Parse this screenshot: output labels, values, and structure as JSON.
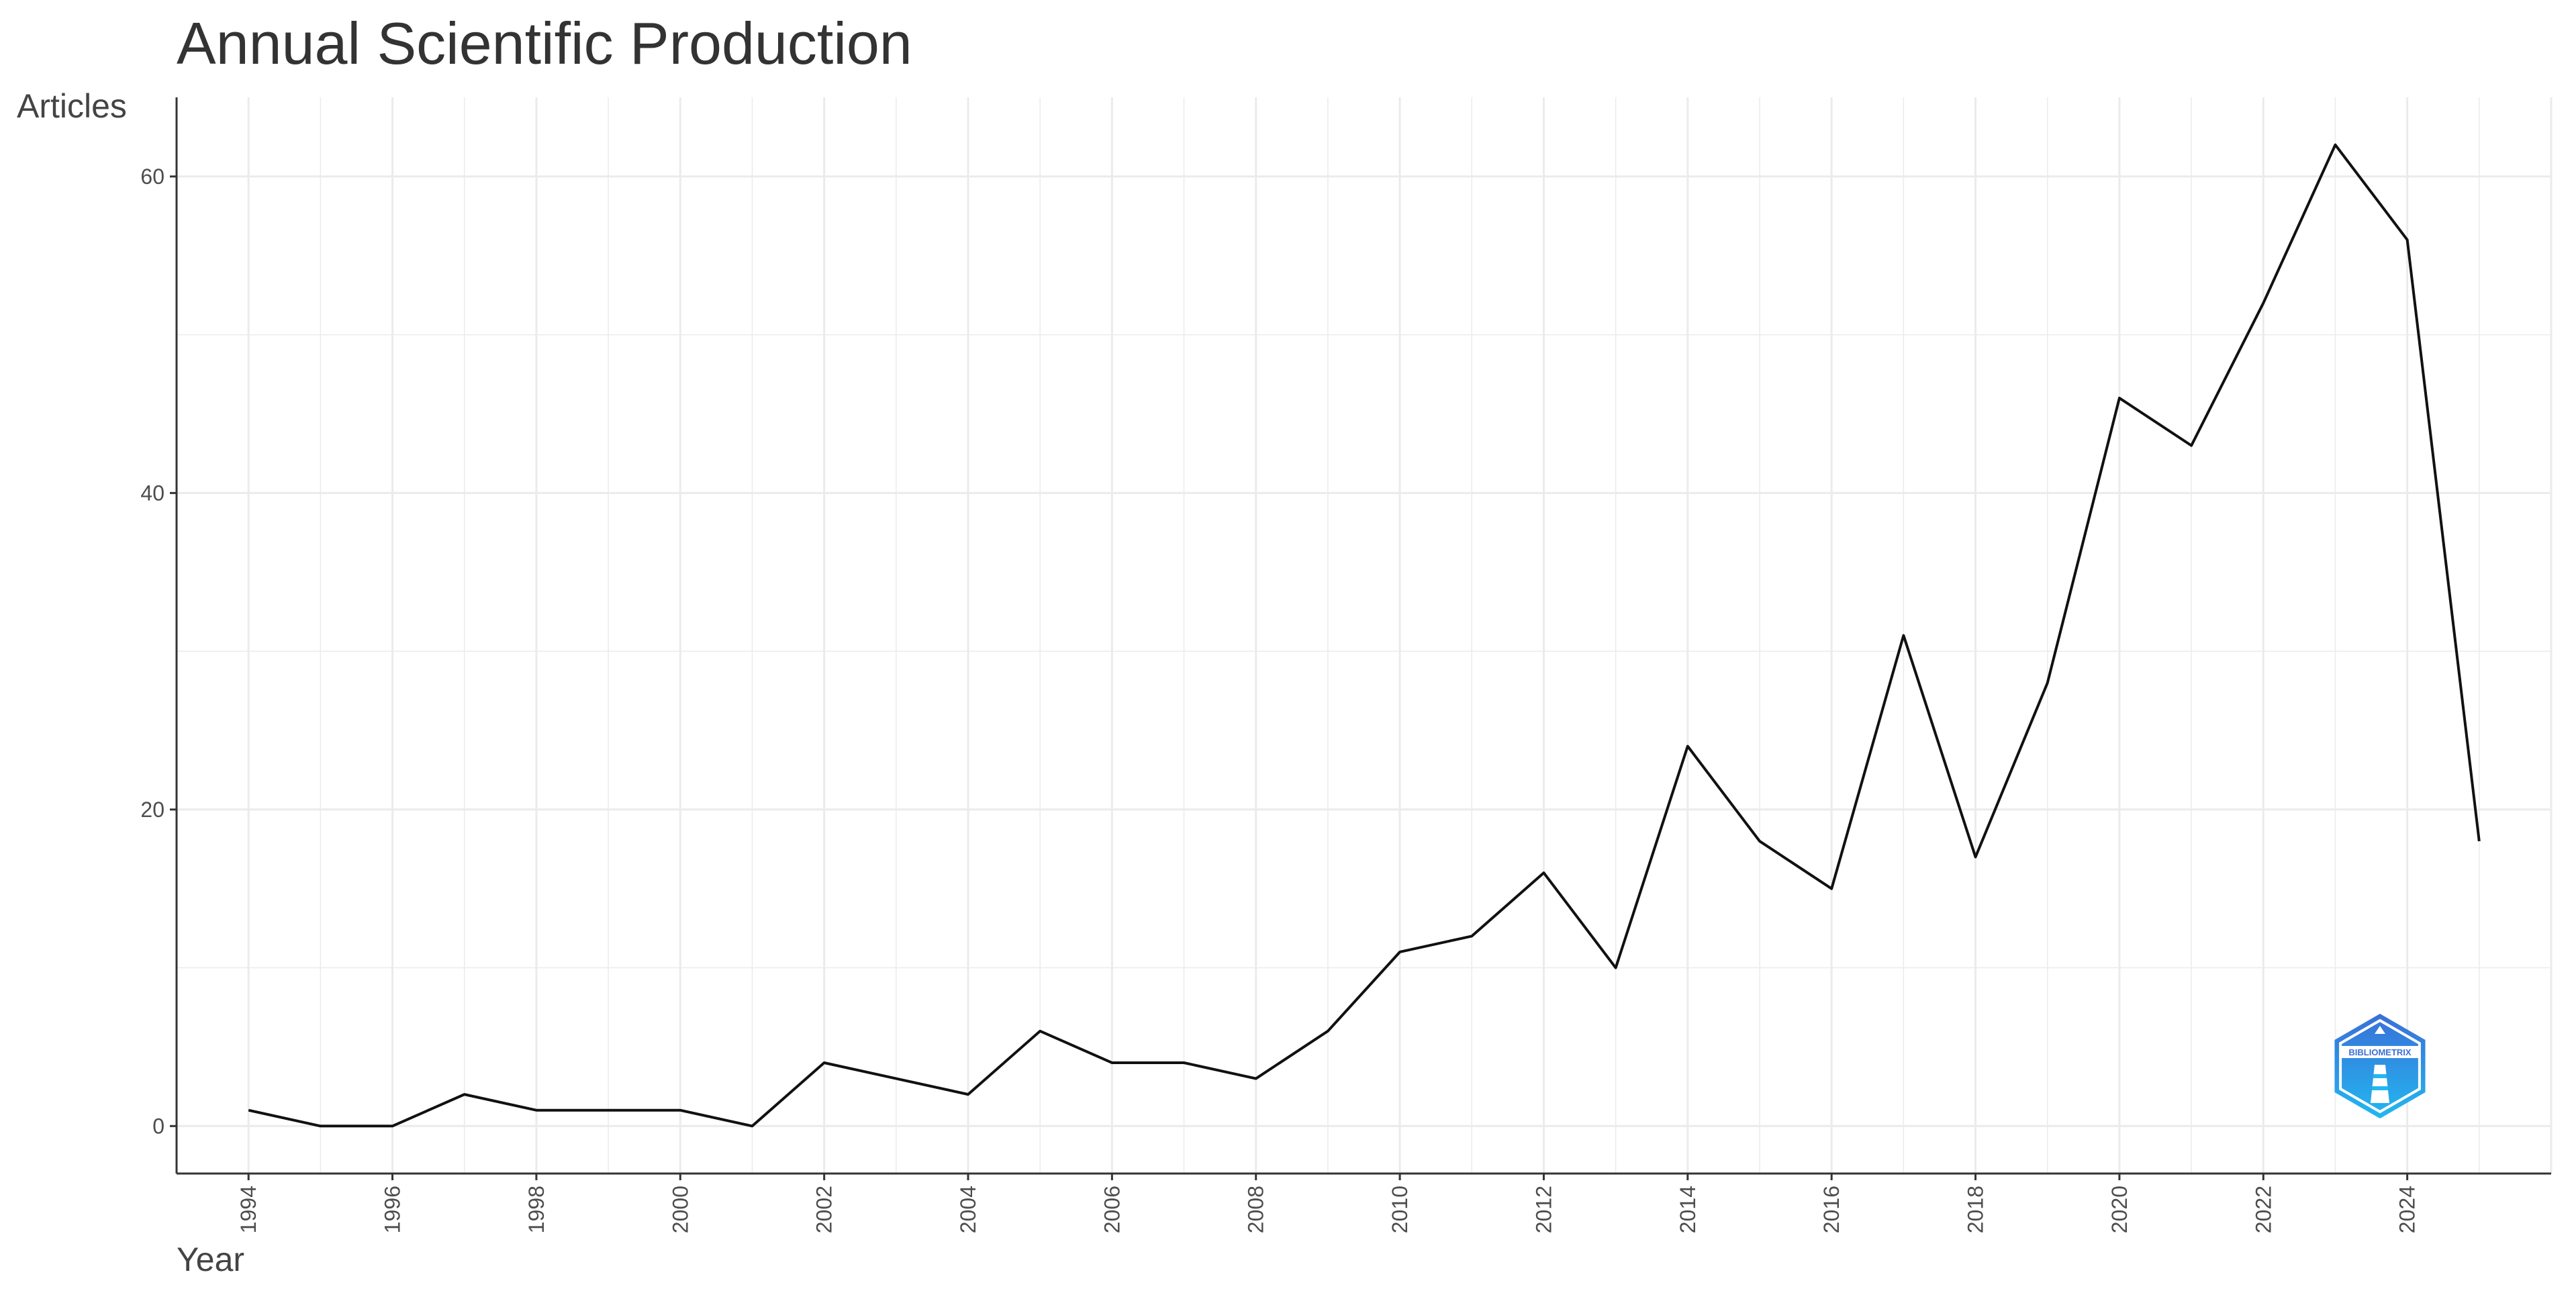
{
  "chart_data": {
    "type": "line",
    "title": "Annual Scientific Production",
    "xlabel": "Year",
    "ylabel": "Articles",
    "x": [
      1994,
      1995,
      1996,
      1997,
      1998,
      1999,
      2000,
      2001,
      2002,
      2003,
      2004,
      2005,
      2006,
      2007,
      2008,
      2009,
      2010,
      2011,
      2012,
      2013,
      2014,
      2015,
      2016,
      2017,
      2018,
      2019,
      2020,
      2021,
      2022,
      2023,
      2024,
      2025
    ],
    "series": [
      {
        "values": [
          1,
          0,
          0,
          2,
          1,
          1,
          1,
          0,
          4,
          3,
          2,
          6,
          4,
          4,
          3,
          6,
          11,
          12,
          16,
          10,
          24,
          18,
          15,
          31,
          17,
          28,
          46,
          43,
          52,
          62,
          56,
          18
        ]
      }
    ],
    "xlim": [
      1993,
      2026
    ],
    "ylim": [
      -3,
      65
    ],
    "x_ticks": [
      "1994",
      "1996",
      "1998",
      "2000",
      "2002",
      "2004",
      "2006",
      "2008",
      "2010",
      "2012",
      "2014",
      "2016",
      "2018",
      "2020",
      "2022",
      "2024"
    ],
    "y_ticks": [
      "0",
      "20",
      "40",
      "60"
    ],
    "grid": true,
    "line_color": "#111111",
    "grid_color": "#ebebeb",
    "logo": {
      "text": "BIBLIOMETRIX",
      "colors": [
        "#3a6fd8",
        "#22b8f0"
      ]
    }
  }
}
